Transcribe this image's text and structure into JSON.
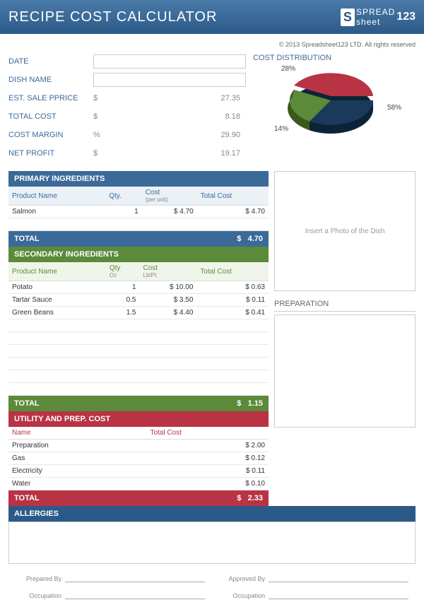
{
  "header": {
    "title": "RECIPE COST CALCULATOR",
    "logo_text": "SPREAD",
    "logo_sheet": "sheet",
    "logo_num": "123"
  },
  "copyright": "© 2013 Spreadsheet123 LTD. All rights reserved",
  "fields": {
    "date_lbl": "DATE",
    "date_val": "",
    "dish_lbl": "DISH NAME",
    "dish_val": "",
    "est_lbl": "EST. SALE PPRICE",
    "est_cur": "$",
    "est_val": "27.35",
    "total_lbl": "TOTAL COST",
    "total_cur": "$",
    "total_val": "8.18",
    "margin_lbl": "COST MARGIN",
    "margin_cur": "%",
    "margin_val": "29.90",
    "profit_lbl": "NET PROFIT",
    "profit_cur": "$",
    "profit_val": "19.17"
  },
  "chart": {
    "title": "COST DISTRIBUTION",
    "type": "pie",
    "slices": [
      {
        "label": "58%",
        "value": 58,
        "color": "#1a3a5c"
      },
      {
        "label": "28%",
        "value": 28,
        "color": "#b83344"
      },
      {
        "label": "14%",
        "value": 14,
        "color": "#5a8a3a"
      }
    ],
    "background_color": "#ffffff"
  },
  "primary": {
    "header": "PRIMARY INGREDIENTS",
    "cols": {
      "name": "Product Name",
      "qty": "Qty.",
      "cost": "Cost",
      "cost_sub": "(per unit)",
      "total": "Total Cost"
    },
    "rows": [
      {
        "name": "Salmon",
        "qty": "1",
        "cost_cur": "$",
        "cost": "4.70",
        "total_cur": "$",
        "total": "4.70"
      }
    ],
    "empty_rows": 1,
    "total_lbl": "TOTAL",
    "total_cur": "$",
    "total_val": "4.70"
  },
  "secondary": {
    "header": "SECONDARY INGREDIENTS",
    "cols": {
      "name": "Product Name",
      "qty": "Qty",
      "qty_sub": "Oz",
      "cost": "Cost",
      "cost_sub": "Lb/Pt",
      "total": "Total Cost"
    },
    "rows": [
      {
        "name": "Potato",
        "qty": "1",
        "cost_cur": "$",
        "cost": "10.00",
        "total_cur": "$",
        "total": "0.63"
      },
      {
        "name": "Tartar Sauce",
        "qty": "0.5",
        "cost_cur": "$",
        "cost": "3.50",
        "total_cur": "$",
        "total": "0.11"
      },
      {
        "name": "Green Beans",
        "qty": "1.5",
        "cost_cur": "$",
        "cost": "4.40",
        "total_cur": "$",
        "total": "0.41"
      }
    ],
    "empty_rows": 6,
    "total_lbl": "TOTAL",
    "total_cur": "$",
    "total_val": "1.15"
  },
  "utility": {
    "header": "UTILITY AND PREP. COST",
    "cols": {
      "name": "Name",
      "total": "Total Cost"
    },
    "rows": [
      {
        "name": "Preparation",
        "cur": "$",
        "total": "2.00"
      },
      {
        "name": "Gas",
        "cur": "$",
        "total": "0.12"
      },
      {
        "name": "Electricity",
        "cur": "$",
        "total": "0.11"
      },
      {
        "name": "Water",
        "cur": "$",
        "total": "0.10"
      }
    ],
    "total_lbl": "TOTAL",
    "total_cur": "$",
    "total_val": "2.33"
  },
  "photo_placeholder": "Insert a Photo of the Dish",
  "prep_header": "PREPARATION",
  "allergies_header": "ALLERGIES",
  "sig": {
    "prepared": "Prepared By",
    "occupation": "Occupation",
    "approved": "Approved By"
  }
}
